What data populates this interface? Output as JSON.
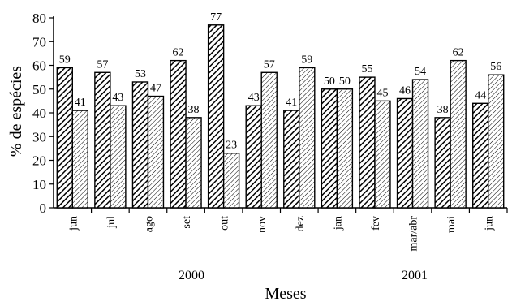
{
  "chart_data": {
    "type": "bar",
    "title": "",
    "xlabel": "Meses",
    "ylabel": "% de espécies",
    "ylim": [
      0,
      80
    ],
    "yticks": [
      0,
      10,
      20,
      30,
      40,
      50,
      60,
      70,
      80
    ],
    "grid": false,
    "categories": [
      "jun",
      "jul",
      "ago",
      "set",
      "out",
      "nov",
      "dez",
      "jan",
      "fev",
      "mar/abr",
      "mai",
      "jun"
    ],
    "year_groups": [
      {
        "label": "2000",
        "categories": [
          "jun",
          "jul",
          "ago",
          "set",
          "out",
          "nov",
          "dez"
        ]
      },
      {
        "label": "2001",
        "categories": [
          "jan",
          "fev",
          "mar/abr",
          "mai",
          "jun"
        ]
      }
    ],
    "series": [
      {
        "pattern": "dense-diagonal-hatch",
        "values": [
          59,
          57,
          53,
          62,
          77,
          43,
          41,
          50,
          55,
          46,
          38,
          44
        ]
      },
      {
        "pattern": "light-diagonal-hatch",
        "values": [
          41,
          43,
          47,
          38,
          23,
          57,
          59,
          50,
          45,
          54,
          62,
          56
        ]
      }
    ]
  }
}
